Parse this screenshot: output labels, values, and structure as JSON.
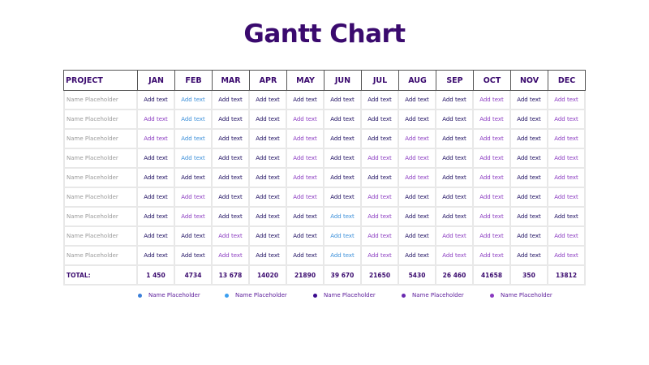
{
  "title": "Gantt Chart",
  "table": {
    "headers": [
      "PROJECT",
      "JAN",
      "FEB",
      "MAR",
      "APR",
      "MAY",
      "JUN",
      "JUL",
      "AUG",
      "SEP",
      "OCT",
      "NOV",
      "DEC"
    ],
    "rows": [
      {
        "name": "Name Placeholder",
        "cells": [
          "Add text",
          "Add text",
          "Add text",
          "Add text",
          "Add text",
          "Add text",
          "Add text",
          "Add text",
          "Add text",
          "Add text",
          "Add text",
          "Add text"
        ],
        "colors": [
          "navy",
          "blue",
          "navy",
          "navy",
          "navy",
          "navy",
          "navy",
          "navy",
          "navy",
          "purple",
          "navy",
          "purple"
        ]
      },
      {
        "name": "Name Placeholder",
        "cells": [
          "Add text",
          "Add text",
          "Add text",
          "Add text",
          "Add text",
          "Add text",
          "Add text",
          "Add text",
          "Add text",
          "Add text",
          "Add text",
          "Add text"
        ],
        "colors": [
          "purple",
          "blue",
          "navy",
          "navy",
          "purple",
          "navy",
          "navy",
          "navy",
          "navy",
          "purple",
          "navy",
          "purple"
        ]
      },
      {
        "name": "Name Placeholder",
        "cells": [
          "Add text",
          "Add text",
          "Add text",
          "Add text",
          "Add text",
          "Add text",
          "Add text",
          "Add text",
          "Add text",
          "Add text",
          "Add text",
          "Add text"
        ],
        "colors": [
          "purple",
          "blue",
          "navy",
          "navy",
          "purple",
          "navy",
          "navy",
          "purple",
          "navy",
          "purple",
          "navy",
          "purple"
        ]
      },
      {
        "name": "Name Placeholder",
        "cells": [
          "Add text",
          "Add text",
          "Add text",
          "Add text",
          "Add text",
          "Add text",
          "Add text",
          "Add text",
          "Add text",
          "Add text",
          "Add text",
          "Add text"
        ],
        "colors": [
          "navy",
          "blue",
          "navy",
          "navy",
          "purple",
          "navy",
          "purple",
          "purple",
          "navy",
          "purple",
          "navy",
          "purple"
        ]
      },
      {
        "name": "Name Placeholder",
        "cells": [
          "Add text",
          "Add text",
          "Add text",
          "Add text",
          "Add text",
          "Add text",
          "Add text",
          "Add text",
          "Add text",
          "Add text",
          "Add text",
          "Add text"
        ],
        "colors": [
          "navy",
          "navy",
          "navy",
          "navy",
          "purple",
          "navy",
          "navy",
          "purple",
          "navy",
          "purple",
          "navy",
          "purple"
        ]
      },
      {
        "name": "Name Placeholder",
        "cells": [
          "Add text",
          "Add text",
          "Add text",
          "Add text",
          "Add text",
          "Add text",
          "Add text",
          "Add text",
          "Add text",
          "Add text",
          "Add text",
          "Add text"
        ],
        "colors": [
          "navy",
          "purple",
          "navy",
          "navy",
          "purple",
          "navy",
          "purple",
          "navy",
          "navy",
          "purple",
          "navy",
          "purple"
        ]
      },
      {
        "name": "Name Placeholder",
        "cells": [
          "Add text",
          "Add text",
          "Add text",
          "Add text",
          "Add text",
          "Add text",
          "Add text",
          "Add text",
          "Add text",
          "Add text",
          "Add text",
          "Add text"
        ],
        "colors": [
          "navy",
          "purple",
          "navy",
          "navy",
          "navy",
          "blue",
          "purple",
          "navy",
          "navy",
          "purple",
          "navy",
          "navy"
        ]
      },
      {
        "name": "Name Placeholder",
        "cells": [
          "Add text",
          "Add text",
          "Add text",
          "Add text",
          "Add text",
          "Add text",
          "Add text",
          "Add text",
          "Add text",
          "Add text",
          "Add text",
          "Add text"
        ],
        "colors": [
          "navy",
          "navy",
          "purple",
          "navy",
          "navy",
          "blue",
          "purple",
          "navy",
          "purple",
          "purple",
          "navy",
          "purple"
        ]
      },
      {
        "name": "Name Placeholder",
        "cells": [
          "Add text",
          "Add text",
          "Add text",
          "Add text",
          "Add text",
          "Add text",
          "Add text",
          "Add text",
          "Add text",
          "Add text",
          "Add text",
          "Add text"
        ],
        "colors": [
          "navy",
          "navy",
          "purple",
          "navy",
          "navy",
          "blue",
          "purple",
          "navy",
          "purple",
          "purple",
          "navy",
          "purple"
        ]
      }
    ],
    "total": {
      "label": "TOTAL:",
      "values": [
        "1 450",
        "4734",
        "13 678",
        "14020",
        "21890",
        "39 670",
        "21650",
        "5430",
        "26 460",
        "41658",
        "350",
        "13812"
      ]
    }
  },
  "legend": [
    {
      "label": "Name Placeholder",
      "color": "#3b7fd9"
    },
    {
      "label": "Name Placeholder",
      "color": "#3b9ff0"
    },
    {
      "label": "Name Placeholder",
      "color": "#3a0a8e"
    },
    {
      "label": "Name Placeholder",
      "color": "#6a2ab0"
    },
    {
      "label": "Name Placeholder",
      "color": "#8a3ac0"
    }
  ],
  "colors": {
    "title": "#3a0a6e",
    "navy": "#1a0a5e",
    "blue": "#3b8fd9",
    "purple": "#8a3ac0",
    "placeholder_gray": "#9a9a9a"
  }
}
